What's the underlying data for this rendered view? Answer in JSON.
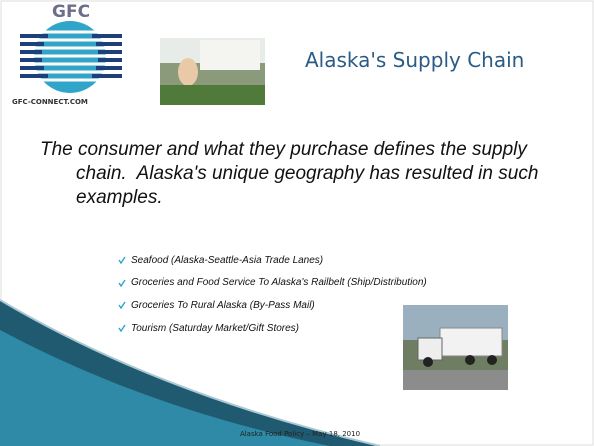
{
  "header": {
    "logo": {
      "name": "GFC",
      "url": "GFC-CONNECT.COM"
    },
    "title": "Alaska's Supply Chain"
  },
  "body": "The consumer and what they purchase defines the supply chain.  Alaska's unique geography has resulted in such examples.",
  "bullets": [
    "Seafood (Alaska-Seattle-Asia Trade Lanes)",
    "Groceries and Food Service To Alaska's Railbelt (Ship/Distribution)",
    "Groceries To Rural Alaska (By-Pass Mail)",
    "Tourism (Saturday Market/Gift Stores)"
  ],
  "footer": "Alaska Food Policy – May 18, 2010"
}
